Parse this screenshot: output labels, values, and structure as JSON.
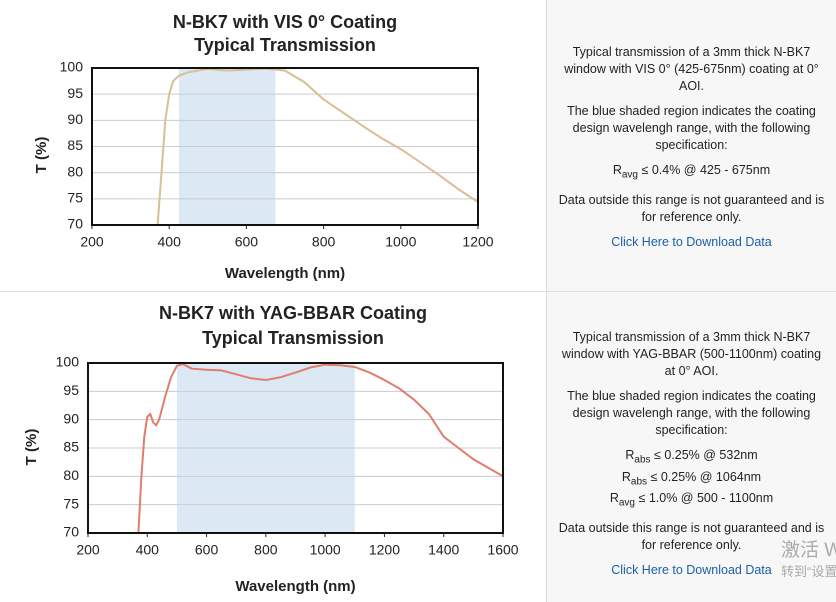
{
  "chart_data": [
    {
      "type": "line",
      "title": [
        "N-BK7 with VIS 0° Coating",
        "Typical Transmission"
      ],
      "x_label": "Wavelength (nm)",
      "y_label": "T (%)",
      "color": "#d9bf94",
      "shade_color": "#dce9f5",
      "shaded_range": [
        425,
        675
      ],
      "x": [
        370,
        380,
        390,
        400,
        410,
        425,
        450,
        500,
        550,
        600,
        650,
        700,
        750,
        800,
        850,
        900,
        950,
        1000,
        1050,
        1100,
        1150,
        1200
      ],
      "values": [
        70,
        80,
        90,
        95,
        97.5,
        98.5,
        99.2,
        99.8,
        99.5,
        99.7,
        99.9,
        99.5,
        97.3,
        94,
        91.5,
        89,
        86.6,
        84.5,
        82,
        79.5,
        76.8,
        74.4
      ],
      "xlim": [
        200,
        1200
      ],
      "xticks": [
        200,
        400,
        600,
        800,
        1000,
        1200
      ],
      "ylim": [
        70,
        100
      ],
      "yticks": [
        70,
        75,
        80,
        85,
        90,
        95,
        100
      ],
      "grid": true
    },
    {
      "type": "line",
      "title": [
        "N-BK7 with YAG-BBAR Coating",
        "Typical Transmission"
      ],
      "x_label": "Wavelength (nm)",
      "y_label": "T (%)",
      "color": "#e07d6c",
      "shade_color": "#dce9f5",
      "shaded_range": [
        500,
        1100
      ],
      "x": [
        370,
        380,
        390,
        400,
        410,
        420,
        430,
        440,
        460,
        480,
        500,
        520,
        550,
        600,
        650,
        700,
        750,
        800,
        850,
        900,
        950,
        1000,
        1050,
        1100,
        1150,
        1200,
        1250,
        1300,
        1350,
        1400,
        1450,
        1500,
        1550,
        1600
      ],
      "values": [
        70,
        80,
        87,
        90.5,
        91,
        89.5,
        89,
        90,
        94,
        97.5,
        99.5,
        99.8,
        99,
        98.8,
        98.7,
        98,
        97.3,
        97,
        97.5,
        98.3,
        99.2,
        99.7,
        99.6,
        99.3,
        98.3,
        97,
        95.5,
        93.5,
        91,
        87,
        85,
        83,
        81.5,
        80
      ],
      "xlim": [
        200,
        1600
      ],
      "xticks": [
        200,
        400,
        600,
        800,
        1000,
        1200,
        1400,
        1600
      ],
      "ylim": [
        70,
        100
      ],
      "yticks": [
        70,
        75,
        80,
        85,
        90,
        95,
        100
      ],
      "grid": true
    }
  ],
  "notes": [
    {
      "paragraphs": [
        "Typical transmission of a 3mm thick N-BK7 window with VIS 0° (425-675nm) coating at 0° AOI.",
        "The blue shaded region indicates the coating design wavelengh range, with the following specification:"
      ],
      "specs": [
        {
          "symbol": "R",
          "sub": "avg",
          "text": "≤ 0.4% @ 425 - 675nm"
        }
      ],
      "footer": "Data outside this range is not guaranteed and is for reference only.",
      "link": "Click Here to Download Data"
    },
    {
      "paragraphs": [
        "Typical transmission of a 3mm thick N-BK7 window with YAG-BBAR (500-1100nm) coating at 0° AOI.",
        "The blue shaded region indicates the coating design wavelengh range, with the following specification:"
      ],
      "specs": [
        {
          "symbol": "R",
          "sub": "abs",
          "text": "≤ 0.25% @ 532nm"
        },
        {
          "symbol": "R",
          "sub": "abs",
          "text": "≤ 0.25% @ 1064nm"
        },
        {
          "symbol": "R",
          "sub": "avg",
          "text": "≤ 1.0% @ 500 - 1100nm"
        }
      ],
      "footer": "Data outside this range is not guaranteed and is for reference only.",
      "link": "Click Here to Download Data"
    }
  ],
  "watermark": [
    "激活 W",
    "转到“设置"
  ]
}
